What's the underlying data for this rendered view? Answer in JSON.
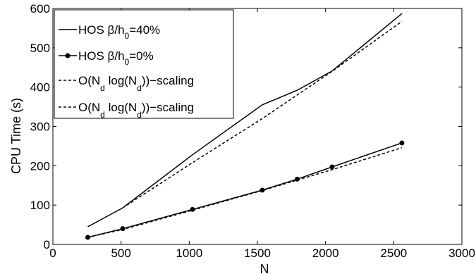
{
  "chart_data": {
    "type": "line",
    "xlabel": "N",
    "ylabel": "CPU Time (s)",
    "xlim": [
      0,
      3000
    ],
    "ylim": [
      0,
      600
    ],
    "xticks": [
      0,
      500,
      1000,
      1500,
      2000,
      2500,
      3000
    ],
    "yticks": [
      0,
      100,
      200,
      300,
      400,
      500,
      600
    ],
    "grid": false,
    "legend_position": "top-left",
    "series": [
      {
        "name": "HOS β/h0=40%",
        "legend": {
          "main": "HOS β/h",
          "sub": "0",
          "tail": "=40%"
        },
        "style": "solid",
        "marker": "none",
        "color": "#000000",
        "x": [
          256,
          512,
          1024,
          1536,
          1792,
          2048,
          2560
        ],
        "y": [
          45,
          93,
          228,
          355,
          392,
          441,
          587
        ]
      },
      {
        "name": "HOS β/h0=0%",
        "legend": {
          "main": "HOS β/h",
          "sub": "0",
          "tail": "=0%"
        },
        "style": "solid",
        "marker": "circle",
        "color": "#000000",
        "x": [
          256,
          512,
          1024,
          1536,
          1792,
          2048,
          2560
        ],
        "y": [
          18,
          40,
          89,
          138,
          166,
          197,
          258
        ]
      },
      {
        "name": "O(Nd log(Nd))-scaling",
        "legend": {
          "parts": [
            "O(N",
            "d",
            " log(N",
            "d",
            "))−scaling"
          ]
        },
        "style": "dashed",
        "marker": "none",
        "color": "#000000",
        "x": [
          512,
          1024,
          1536,
          2048,
          2560
        ],
        "y": [
          93,
          208,
          320,
          440,
          567
        ]
      },
      {
        "name": "O(Nd log(Nd))-scaling",
        "legend": {
          "parts": [
            "O(N",
            "d",
            " log(N",
            "d",
            "))−scaling"
          ]
        },
        "style": "dashed",
        "marker": "none",
        "color": "#000000",
        "x": [
          256,
          512,
          1024,
          1536,
          2048,
          2560
        ],
        "y": [
          18,
          38,
          87,
          137,
          190,
          246
        ]
      }
    ]
  }
}
